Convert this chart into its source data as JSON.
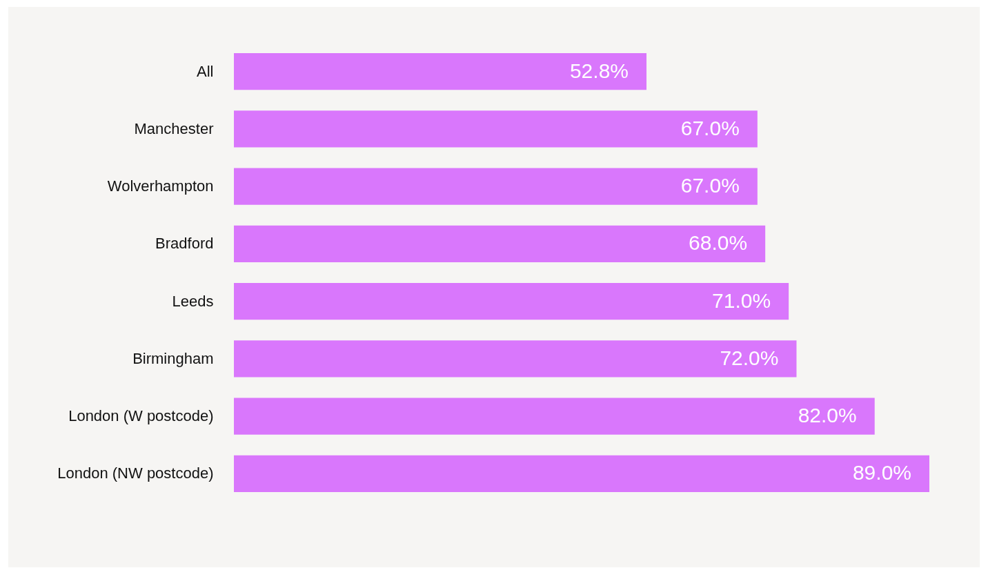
{
  "chart_data": {
    "type": "bar",
    "orientation": "horizontal",
    "categories": [
      "All",
      "Manchester",
      "Wolverhampton",
      "Bradford",
      "Leeds",
      "Birmingham",
      "London (W postcode)",
      "London (NW postcode)"
    ],
    "values": [
      52.8,
      67.0,
      67.0,
      68.0,
      71.0,
      72.0,
      82.0,
      89.0
    ],
    "value_labels": [
      "52.8%",
      "67.0%",
      "67.0%",
      "68.0%",
      "71.0%",
      "72.0%",
      "82.0%",
      "89.0%"
    ],
    "color": "#d977fc"
  }
}
